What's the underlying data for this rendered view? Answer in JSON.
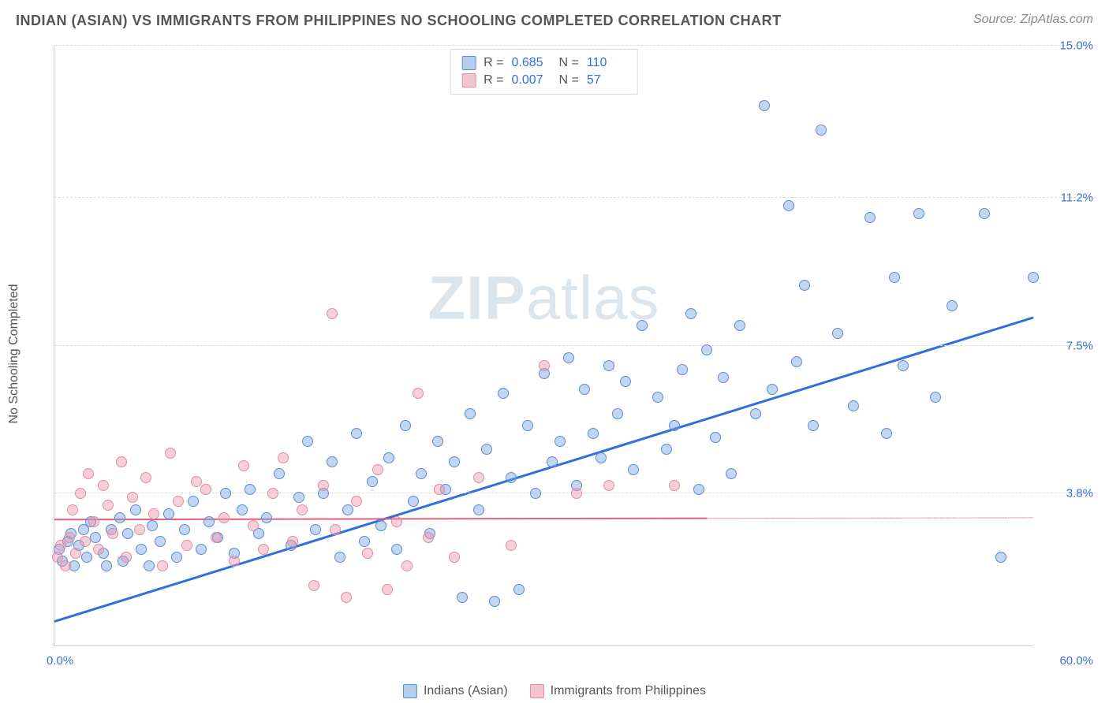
{
  "header": {
    "title": "INDIAN (ASIAN) VS IMMIGRANTS FROM PHILIPPINES NO SCHOOLING COMPLETED CORRELATION CHART",
    "source_label": "Source:",
    "source_value": "ZipAtlas.com"
  },
  "watermark": {
    "part1": "ZIP",
    "part2": "atlas"
  },
  "chart": {
    "type": "scatter",
    "ylabel": "No Schooling Completed",
    "xlim": [
      0,
      60
    ],
    "ylim": [
      0,
      15
    ],
    "x_ticks": [
      {
        "value": 0,
        "label": "0.0%"
      },
      {
        "value": 60,
        "label": "60.0%"
      }
    ],
    "y_ticks": [
      {
        "value": 3.8,
        "label": "3.8%"
      },
      {
        "value": 7.5,
        "label": "7.5%"
      },
      {
        "value": 11.2,
        "label": "11.2%"
      },
      {
        "value": 15.0,
        "label": "15.0%"
      }
    ],
    "grid_color": "#dddddd",
    "background_color": "#ffffff",
    "marker_radius": 7,
    "series": [
      {
        "id": "s1",
        "name": "Indians (Asian)",
        "color_fill": "rgba(120,165,225,0.45)",
        "color_stroke": "#5a8cd8",
        "trend_color": "#2f6fe0",
        "trend_width": 3,
        "R": "0.685",
        "N": "110",
        "trend": {
          "x1": 0,
          "y1": 0.6,
          "x2": 60,
          "y2": 8.2,
          "dash_after_x": 60
        },
        "points": [
          [
            0.3,
            2.4
          ],
          [
            0.5,
            2.1
          ],
          [
            0.8,
            2.6
          ],
          [
            1.0,
            2.8
          ],
          [
            1.2,
            2.0
          ],
          [
            1.5,
            2.5
          ],
          [
            1.8,
            2.9
          ],
          [
            2.0,
            2.2
          ],
          [
            2.2,
            3.1
          ],
          [
            2.5,
            2.7
          ],
          [
            3.0,
            2.3
          ],
          [
            3.2,
            2.0
          ],
          [
            3.5,
            2.9
          ],
          [
            4.0,
            3.2
          ],
          [
            4.2,
            2.1
          ],
          [
            4.5,
            2.8
          ],
          [
            5.0,
            3.4
          ],
          [
            5.3,
            2.4
          ],
          [
            5.8,
            2.0
          ],
          [
            6.0,
            3.0
          ],
          [
            6.5,
            2.6
          ],
          [
            7.0,
            3.3
          ],
          [
            7.5,
            2.2
          ],
          [
            8.0,
            2.9
          ],
          [
            8.5,
            3.6
          ],
          [
            9.0,
            2.4
          ],
          [
            9.5,
            3.1
          ],
          [
            10.0,
            2.7
          ],
          [
            10.5,
            3.8
          ],
          [
            11.0,
            2.3
          ],
          [
            11.5,
            3.4
          ],
          [
            12.0,
            3.9
          ],
          [
            12.5,
            2.8
          ],
          [
            13.0,
            3.2
          ],
          [
            13.8,
            4.3
          ],
          [
            14.5,
            2.5
          ],
          [
            15.0,
            3.7
          ],
          [
            15.5,
            5.1
          ],
          [
            16.0,
            2.9
          ],
          [
            16.5,
            3.8
          ],
          [
            17.0,
            4.6
          ],
          [
            17.5,
            2.2
          ],
          [
            18.0,
            3.4
          ],
          [
            18.5,
            5.3
          ],
          [
            19.0,
            2.6
          ],
          [
            19.5,
            4.1
          ],
          [
            20.0,
            3.0
          ],
          [
            20.5,
            4.7
          ],
          [
            21.0,
            2.4
          ],
          [
            21.5,
            5.5
          ],
          [
            22.0,
            3.6
          ],
          [
            22.5,
            4.3
          ],
          [
            23.0,
            2.8
          ],
          [
            23.5,
            5.1
          ],
          [
            24.0,
            3.9
          ],
          [
            24.5,
            4.6
          ],
          [
            25.0,
            1.2
          ],
          [
            25.5,
            5.8
          ],
          [
            26.0,
            3.4
          ],
          [
            26.5,
            4.9
          ],
          [
            27.0,
            1.1
          ],
          [
            27.5,
            6.3
          ],
          [
            28.0,
            4.2
          ],
          [
            28.5,
            1.4
          ],
          [
            29.0,
            5.5
          ],
          [
            29.5,
            3.8
          ],
          [
            30.0,
            6.8
          ],
          [
            30.5,
            4.6
          ],
          [
            31.0,
            5.1
          ],
          [
            31.5,
            7.2
          ],
          [
            32.0,
            4.0
          ],
          [
            32.5,
            6.4
          ],
          [
            33.0,
            5.3
          ],
          [
            33.5,
            4.7
          ],
          [
            34.0,
            7.0
          ],
          [
            34.5,
            5.8
          ],
          [
            35.0,
            6.6
          ],
          [
            35.5,
            4.4
          ],
          [
            36.0,
            8.0
          ],
          [
            37.0,
            6.2
          ],
          [
            37.5,
            4.9
          ],
          [
            38.0,
            5.5
          ],
          [
            38.5,
            6.9
          ],
          [
            39.0,
            8.3
          ],
          [
            39.5,
            3.9
          ],
          [
            40.0,
            7.4
          ],
          [
            40.5,
            5.2
          ],
          [
            41.0,
            6.7
          ],
          [
            41.5,
            4.3
          ],
          [
            42.0,
            8.0
          ],
          [
            43.0,
            5.8
          ],
          [
            43.5,
            13.5
          ],
          [
            44.0,
            6.4
          ],
          [
            45.0,
            11.0
          ],
          [
            45.5,
            7.1
          ],
          [
            46.0,
            9.0
          ],
          [
            46.5,
            5.5
          ],
          [
            47.0,
            12.9
          ],
          [
            48.0,
            7.8
          ],
          [
            49.0,
            6.0
          ],
          [
            50.0,
            10.7
          ],
          [
            51.0,
            5.3
          ],
          [
            51.5,
            9.2
          ],
          [
            52.0,
            7.0
          ],
          [
            53.0,
            10.8
          ],
          [
            54.0,
            6.2
          ],
          [
            55.0,
            8.5
          ],
          [
            57.0,
            10.8
          ],
          [
            58.0,
            2.2
          ],
          [
            60.0,
            9.2
          ]
        ]
      },
      {
        "id": "s2",
        "name": "Immigrants from Philippines",
        "color_fill": "rgba(235,150,170,0.45)",
        "color_stroke": "#e08ca0",
        "trend_color": "#e2607e",
        "trend_width": 2,
        "R": "0.007",
        "N": "57",
        "trend": {
          "x1": 0,
          "y1": 3.15,
          "x2": 40,
          "y2": 3.18,
          "dash_after_x": 40
        },
        "points": [
          [
            0.2,
            2.2
          ],
          [
            0.4,
            2.5
          ],
          [
            0.7,
            2.0
          ],
          [
            0.9,
            2.7
          ],
          [
            1.1,
            3.4
          ],
          [
            1.3,
            2.3
          ],
          [
            1.6,
            3.8
          ],
          [
            1.9,
            2.6
          ],
          [
            2.1,
            4.3
          ],
          [
            2.4,
            3.1
          ],
          [
            2.7,
            2.4
          ],
          [
            3.0,
            4.0
          ],
          [
            3.3,
            3.5
          ],
          [
            3.6,
            2.8
          ],
          [
            4.1,
            4.6
          ],
          [
            4.4,
            2.2
          ],
          [
            4.8,
            3.7
          ],
          [
            5.2,
            2.9
          ],
          [
            5.6,
            4.2
          ],
          [
            6.1,
            3.3
          ],
          [
            6.6,
            2.0
          ],
          [
            7.1,
            4.8
          ],
          [
            7.6,
            3.6
          ],
          [
            8.1,
            2.5
          ],
          [
            8.7,
            4.1
          ],
          [
            9.3,
            3.9
          ],
          [
            9.9,
            2.7
          ],
          [
            10.4,
            3.2
          ],
          [
            11.0,
            2.1
          ],
          [
            11.6,
            4.5
          ],
          [
            12.2,
            3.0
          ],
          [
            12.8,
            2.4
          ],
          [
            13.4,
            3.8
          ],
          [
            14.0,
            4.7
          ],
          [
            14.6,
            2.6
          ],
          [
            15.2,
            3.4
          ],
          [
            15.9,
            1.5
          ],
          [
            16.5,
            4.0
          ],
          [
            17.0,
            8.3
          ],
          [
            17.2,
            2.9
          ],
          [
            17.9,
            1.2
          ],
          [
            18.5,
            3.6
          ],
          [
            19.2,
            2.3
          ],
          [
            19.8,
            4.4
          ],
          [
            20.4,
            1.4
          ],
          [
            21.0,
            3.1
          ],
          [
            21.6,
            2.0
          ],
          [
            22.3,
            6.3
          ],
          [
            22.9,
            2.7
          ],
          [
            23.6,
            3.9
          ],
          [
            24.5,
            2.2
          ],
          [
            26.0,
            4.2
          ],
          [
            28.0,
            2.5
          ],
          [
            30.0,
            7.0
          ],
          [
            32.0,
            3.8
          ],
          [
            34.0,
            4.0
          ],
          [
            38.0,
            4.0
          ]
        ]
      }
    ],
    "legend_bottom": [
      {
        "series": "s1",
        "label": "Indians (Asian)"
      },
      {
        "series": "s2",
        "label": "Immigrants from Philippines"
      }
    ],
    "legend_top_labels": {
      "R": "R  =",
      "N": "N  ="
    }
  }
}
